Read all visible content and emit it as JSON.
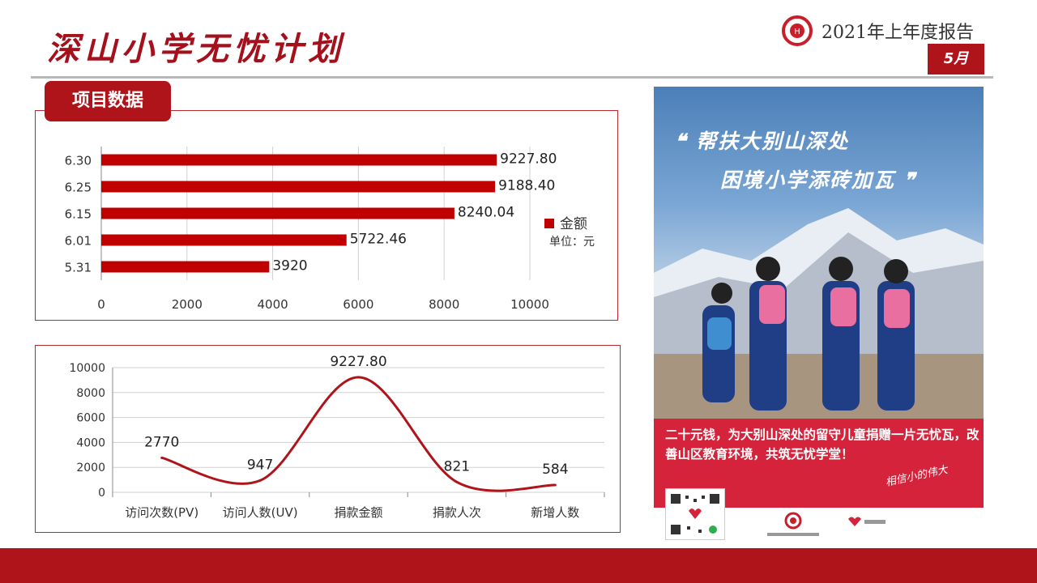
{
  "header": {
    "title": "深山小学无忧计划",
    "report_title": "2021年上年度报告",
    "month": "5月"
  },
  "section": {
    "label": "项目数据"
  },
  "chart_data": [
    {
      "type": "bar",
      "orientation": "horizontal",
      "categories": [
        "6.30",
        "6.25",
        "6.15",
        "6.01",
        "5.31"
      ],
      "series": [
        {
          "name": "金额",
          "values": [
            9227.8,
            9188.4,
            8240.04,
            5722.46,
            3920
          ]
        }
      ],
      "data_labels": [
        "9227.80",
        "9188.40",
        "8240.04",
        "5722.46",
        "3920"
      ],
      "xlim": [
        0,
        10000
      ],
      "x_ticks": [
        "0",
        "2000",
        "4000",
        "6000",
        "8000",
        "10000"
      ],
      "legend": {
        "label": "金额",
        "unit": "单位：元",
        "position": "right"
      },
      "grid": true,
      "color": "#c00000"
    },
    {
      "type": "line",
      "smooth": true,
      "categories": [
        "访问次数(PV)",
        "访问人数(UV)",
        "捐款金额",
        "捐款人次",
        "新增人数"
      ],
      "values": [
        2770,
        947,
        9227.8,
        821,
        584
      ],
      "data_labels": [
        "2770",
        "947",
        "9227.80",
        "821",
        "584"
      ],
      "ylim": [
        0,
        10000
      ],
      "y_ticks": [
        "0",
        "2000",
        "4000",
        "6000",
        "8000",
        "10000"
      ],
      "grid": true,
      "color": "#b0141b"
    }
  ],
  "poster": {
    "quote_line1": "帮扶大别山深处",
    "quote_line2": "困境小学添砖加瓦",
    "text": "二十元钱，为大别山深处的留守儿童捐赠一片无忧瓦，改善山区教育环境，共筑无忧学堂！",
    "signature": "相信小的伟大"
  },
  "colors": {
    "accent": "#b0141b",
    "bar": "#c00000",
    "grid": "#d0d0d0"
  }
}
